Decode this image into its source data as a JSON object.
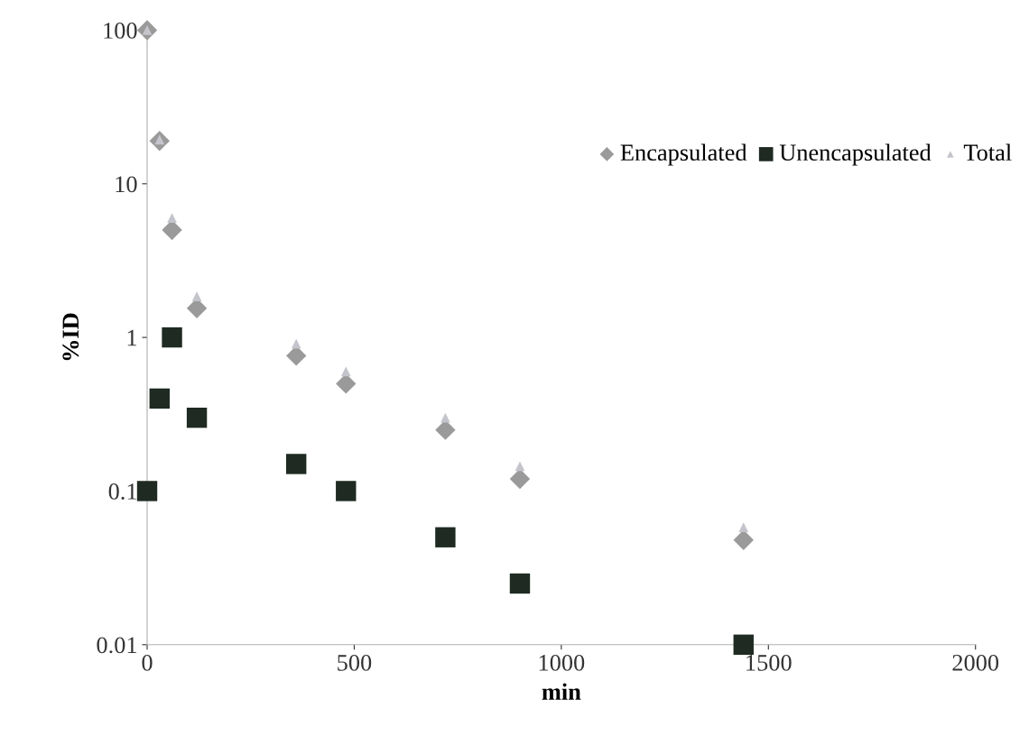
{
  "chart_data": {
    "type": "scatter",
    "xlabel": "min",
    "ylabel": "%ID",
    "log": "y",
    "xlim": [
      0,
      2000
    ],
    "xticks": [
      0,
      500,
      1000,
      1500,
      2000
    ],
    "ylim": [
      0.01,
      100
    ],
    "yticks": [
      {
        "value": 0.01,
        "label": "0.01"
      },
      {
        "value": 0.1,
        "label": "0.1"
      },
      {
        "value": 1,
        "label": "1"
      },
      {
        "value": 10,
        "label": "10"
      },
      {
        "value": 100,
        "label": "100"
      }
    ],
    "grid": false,
    "legend": "top right",
    "x": [
      0,
      30,
      60,
      120,
      360,
      480,
      720,
      900,
      1440
    ],
    "series": [
      {
        "name": "Encapsulated",
        "color": "#9a9a9a",
        "marker": "diamond",
        "values": [
          100,
          19,
          5,
          1.55,
          0.76,
          0.5,
          0.25,
          0.12,
          0.048
        ]
      },
      {
        "name": "Unencapsulated",
        "color": "#1e2a22",
        "marker": "square",
        "values": [
          0.1,
          0.4,
          1,
          0.3,
          0.15,
          0.1,
          0.05,
          0.025,
          0.01
        ]
      },
      {
        "name": "Total",
        "color": "#c4c4cc",
        "marker": "triangle",
        "values": [
          100,
          19.4,
          6,
          1.85,
          0.91,
          0.6,
          0.3,
          0.145,
          0.058
        ]
      }
    ]
  }
}
